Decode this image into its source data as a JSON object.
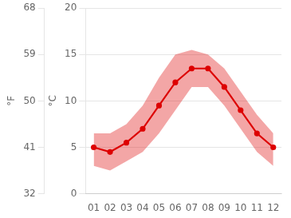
{
  "chart_data": {
    "type": "line",
    "categories": [
      "01",
      "02",
      "03",
      "04",
      "05",
      "06",
      "07",
      "08",
      "09",
      "10",
      "11",
      "12"
    ],
    "values": [
      5.0,
      4.5,
      5.5,
      7.0,
      9.5,
      12.0,
      13.5,
      13.5,
      11.5,
      9.0,
      6.5,
      5.0
    ],
    "upper_band": [
      6.5,
      6.5,
      7.5,
      9.5,
      12.5,
      15.0,
      15.5,
      15.0,
      13.5,
      11.0,
      8.5,
      6.5
    ],
    "lower_band": [
      3.0,
      2.5,
      3.5,
      4.5,
      6.5,
      9.0,
      11.5,
      11.5,
      9.5,
      7.0,
      4.5,
      3.0
    ],
    "color": "#dd0000",
    "marker": "circle",
    "ylim": [
      0,
      20
    ],
    "yticks": [
      0,
      5,
      10,
      15,
      20
    ],
    "y_label": "°C",
    "y2lim": [
      32,
      68
    ],
    "y2ticks": [
      32,
      41,
      50,
      59,
      68
    ],
    "y2_label": "°F",
    "grid": true
  }
}
